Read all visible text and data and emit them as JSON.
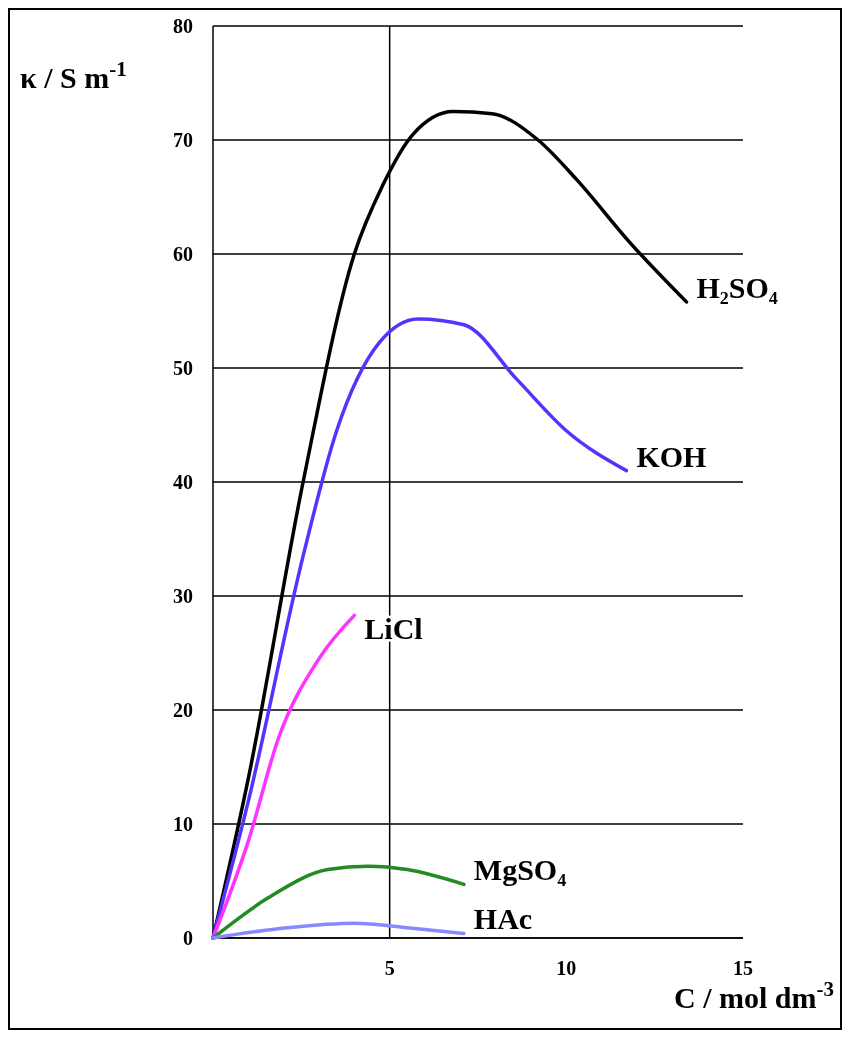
{
  "chart_data": {
    "type": "line",
    "xlabel": "C / mol dm$^{-3}$",
    "ylabel": "κ / S m$^{-1}$",
    "xlim": [
      0,
      15
    ],
    "xticks": [
      5,
      10,
      15
    ],
    "ylim": [
      0,
      80
    ],
    "yticks": [
      0,
      10,
      20,
      30,
      40,
      50,
      60,
      70,
      80
    ],
    "grid": "y",
    "ref_lines": [
      {
        "axis": "x",
        "value": 5
      }
    ],
    "series": [
      {
        "name": "H₂SO₄",
        "color": "#000000",
        "x": [
          0,
          1,
          2.55,
          4.0,
          4.8,
          5.66,
          6.8,
          7.9,
          9.2,
          10.3,
          11.8,
          13.4
        ],
        "values": [
          0,
          14,
          40,
          60,
          66,
          70.5,
          72.5,
          72.3,
          70,
          66.5,
          61,
          55.8
        ]
      },
      {
        "name": "KOH",
        "color": "#5533ff",
        "x": [
          0,
          1,
          2.55,
          3.5,
          4.7,
          5.8,
          7.1,
          8.6,
          10,
          11.7
        ],
        "values": [
          0,
          12,
          33.5,
          44.5,
          52.2,
          54.3,
          53.8,
          49,
          44.5,
          41
        ]
      },
      {
        "name": "LiCl",
        "color": "#ff33ff",
        "x": [
          0,
          1,
          1.85,
          3.0,
          4.0
        ],
        "values": [
          0,
          8.5,
          17.5,
          24.5,
          28.3
        ]
      },
      {
        "name": "MgSO₄",
        "color": "#228b22",
        "x": [
          0,
          1.55,
          3.25,
          4.4,
          5.5,
          7.1
        ],
        "values": [
          0,
          3.5,
          6,
          6.3,
          6,
          4.7
        ]
      },
      {
        "name": "HAc",
        "color": "#8888ff",
        "x": [
          0,
          2.1,
          4.0,
          5.5,
          7.1
        ],
        "values": [
          0,
          0.9,
          1.3,
          0.9,
          0.4
        ]
      }
    ]
  }
}
